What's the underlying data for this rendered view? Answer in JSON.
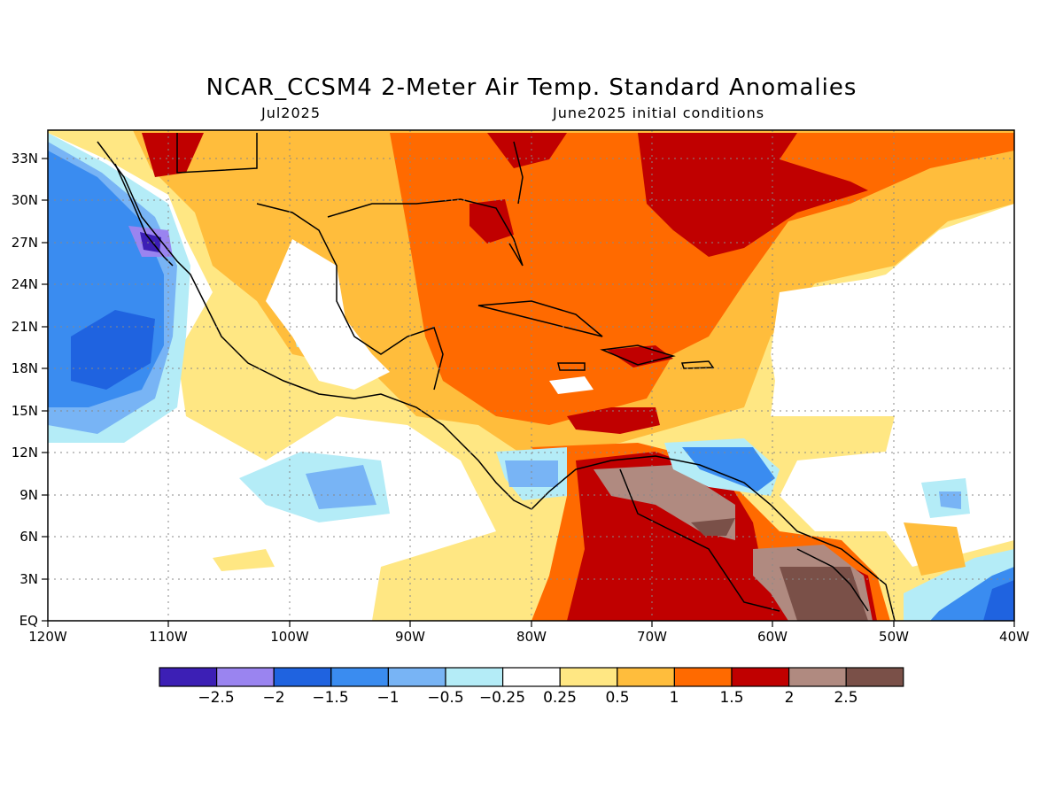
{
  "header": {
    "title": "NCAR_CCSM4 2-Meter Air Temp. Standard Anomalies",
    "target_month": "Jul2025",
    "init_conditions": "June2025 initial conditions"
  },
  "map": {
    "lon_range": [
      -120,
      -40
    ],
    "lat_range": [
      0,
      35
    ],
    "lon_ticks": [
      "120W",
      "110W",
      "100W",
      "90W",
      "80W",
      "70W",
      "60W",
      "50W",
      "40W"
    ],
    "lat_ticks": [
      "EQ",
      "3N",
      "6N",
      "9N",
      "12N",
      "15N",
      "18N",
      "21N",
      "24N",
      "27N",
      "30N",
      "33N"
    ],
    "grid": true
  },
  "colorbar": {
    "colors": [
      "#3c1fb5",
      "#9a84f0",
      "#1f63e0",
      "#3a8cf0",
      "#78b4f5",
      "#b4ecf7",
      "#ffffff",
      "#ffe783",
      "#ffbd3c",
      "#ff6a00",
      "#c00000",
      "#b08a80",
      "#7a5048"
    ],
    "labels": [
      "−2.5",
      "−2",
      "−1.5",
      "−1",
      "−0.5",
      "−0.25",
      "0.25",
      "0.5",
      "1",
      "1.5",
      "2",
      "2.5"
    ]
  }
}
